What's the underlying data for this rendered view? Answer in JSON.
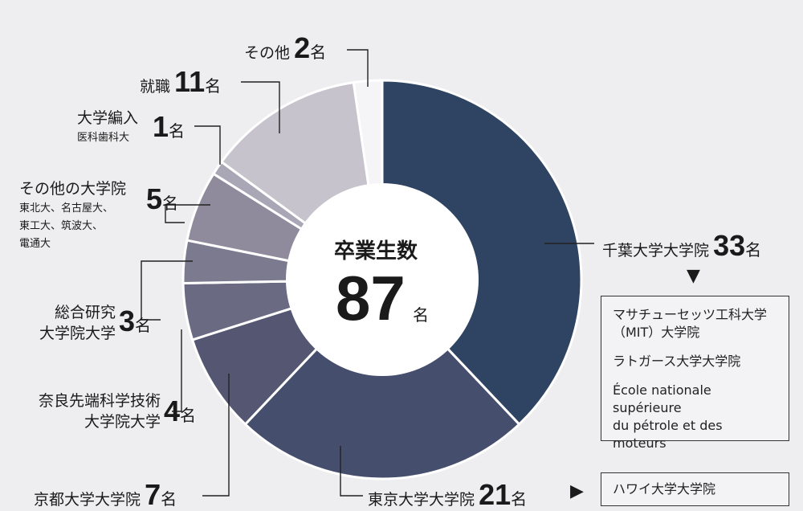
{
  "chart_data": {
    "type": "pie",
    "title": "卒業生数",
    "total": "87",
    "total_unit": "名",
    "slices": [
      {
        "label": "千葉大学大学院",
        "value": 33,
        "color": "#2f4462"
      },
      {
        "label": "東京大学大学院",
        "value": 21,
        "color": "#454e6d"
      },
      {
        "label": "京都大学大学院",
        "value": 7,
        "color": "#555772"
      },
      {
        "label": "奈良先端科学技術大学院大学",
        "value": 4,
        "color": "#6a6a82"
      },
      {
        "label": "総合研究大学院大学",
        "value": 3,
        "color": "#7b7a8f"
      },
      {
        "label": "その他の大学院",
        "value": 5,
        "color": "#8f8b9d"
      },
      {
        "label": "大学編入",
        "value": 1,
        "color": "#a9a6b6"
      },
      {
        "label": "就職",
        "value": 11,
        "color": "#c6c3cc"
      },
      {
        "label": "その他",
        "value": 2,
        "color": "#f5f4f6"
      }
    ]
  },
  "labels": {
    "chiba": {
      "name": "千葉大学大学院",
      "count": "33",
      "unit": "名"
    },
    "tokyo": {
      "name": "東京大学大学院",
      "count": "21",
      "unit": "名"
    },
    "kyoto": {
      "name": "京都大学大学院",
      "count": "7",
      "unit": "名"
    },
    "nara": {
      "name1": "奈良先端科学技術",
      "name2": "大学院大学",
      "count": "4",
      "unit": "名"
    },
    "soken": {
      "name1": "総合研究",
      "name2": "大学院大学",
      "count": "3",
      "unit": "名"
    },
    "other_grad": {
      "name": "その他の大学院",
      "sub1": "東北大、名古屋大、",
      "sub2": "東工大、筑波大、",
      "sub3": "電通大",
      "count": "5",
      "unit": "名"
    },
    "transfer": {
      "name": "大学編入",
      "sub": "医科歯科大",
      "count": "1",
      "unit": "名"
    },
    "job": {
      "name": "就職",
      "count": "11",
      "unit": "名"
    },
    "other": {
      "name": "その他",
      "count": "2",
      "unit": "名"
    }
  },
  "boxes": {
    "chiba_list": [
      "マサチューセッツ工科大学",
      "（MIT）大学院",
      "ラトガース大学大学院",
      "École nationale supérieure",
      "du pétrole et des moteurs"
    ],
    "tokyo_list": [
      "ハワイ大学大学院"
    ]
  },
  "arrows": {
    "down": "▼",
    "right": "▶"
  }
}
